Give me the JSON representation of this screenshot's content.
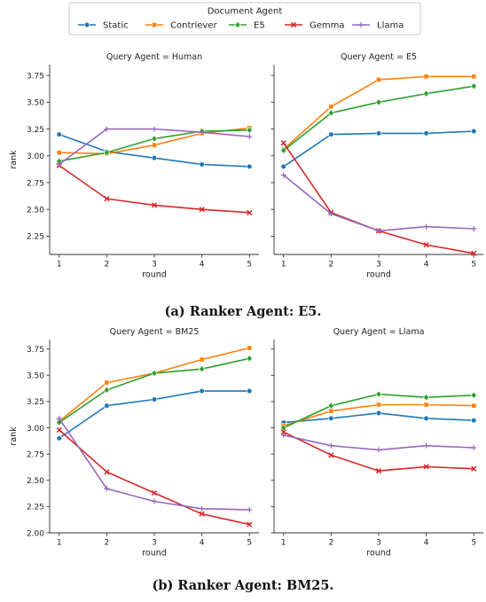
{
  "legend": {
    "title": "Document Agent",
    "entries": [
      {
        "name": "Static",
        "color": "#1f77b4",
        "marker": "circle"
      },
      {
        "name": "Contriever",
        "color": "#ff7f0e",
        "marker": "square"
      },
      {
        "name": "E5",
        "color": "#2ca02c",
        "marker": "diamond"
      },
      {
        "name": "Gemma",
        "color": "#d62728",
        "marker": "x"
      },
      {
        "name": "Llama",
        "color": "#9467bd",
        "marker": "plus"
      }
    ]
  },
  "captions": {
    "a": "(a) Ranker Agent: E5.",
    "b": "(b) Ranker Agent: BM25."
  },
  "chart_data": [
    {
      "type": "line",
      "title": "Query Agent = Human",
      "xlabel": "round",
      "ylabel": "rank",
      "x": [
        1,
        2,
        3,
        4,
        5
      ],
      "ylim": [
        2.08,
        3.85
      ],
      "yticks": [
        "2.25",
        "2.50",
        "2.75",
        "3.00",
        "3.25",
        "3.50",
        "3.75"
      ],
      "series": [
        {
          "name": "Static",
          "values": [
            3.2,
            3.04,
            2.98,
            2.92,
            2.9
          ]
        },
        {
          "name": "Contriever",
          "values": [
            3.03,
            3.02,
            3.1,
            3.21,
            3.26
          ]
        },
        {
          "name": "E5",
          "values": [
            2.95,
            3.03,
            3.16,
            3.23,
            3.24
          ]
        },
        {
          "name": "Gemma",
          "values": [
            2.91,
            2.6,
            2.54,
            2.5,
            2.47
          ]
        },
        {
          "name": "Llama",
          "values": [
            2.92,
            3.25,
            3.25,
            3.22,
            3.18
          ]
        }
      ]
    },
    {
      "type": "line",
      "title": "Query Agent = E5",
      "xlabel": "round",
      "ylabel": "",
      "x": [
        1,
        2,
        3,
        4,
        5
      ],
      "ylim": [
        2.08,
        3.85
      ],
      "series": [
        {
          "name": "Static",
          "values": [
            2.9,
            3.2,
            3.21,
            3.21,
            3.23
          ]
        },
        {
          "name": "Contriever",
          "values": [
            3.06,
            3.46,
            3.71,
            3.74,
            3.74
          ]
        },
        {
          "name": "E5",
          "values": [
            3.05,
            3.4,
            3.5,
            3.58,
            3.65
          ]
        },
        {
          "name": "Gemma",
          "values": [
            3.12,
            2.47,
            2.3,
            2.17,
            2.09
          ]
        },
        {
          "name": "Llama",
          "values": [
            2.82,
            2.46,
            2.3,
            2.34,
            2.32
          ]
        }
      ]
    },
    {
      "type": "line",
      "title": "Query Agent = BM25",
      "xlabel": "round",
      "ylabel": "rank",
      "x": [
        1,
        2,
        3,
        4,
        5
      ],
      "ylim": [
        2.0,
        3.84
      ],
      "yticks": [
        "2.00",
        "2.25",
        "2.50",
        "2.75",
        "3.00",
        "3.25",
        "3.50",
        "3.75"
      ],
      "series": [
        {
          "name": "Static",
          "values": [
            2.9,
            3.21,
            3.27,
            3.35,
            3.35
          ]
        },
        {
          "name": "Contriever",
          "values": [
            3.06,
            3.43,
            3.52,
            3.65,
            3.76
          ]
        },
        {
          "name": "E5",
          "values": [
            3.05,
            3.36,
            3.52,
            3.56,
            3.66
          ]
        },
        {
          "name": "Gemma",
          "values": [
            2.98,
            2.58,
            2.38,
            2.18,
            2.08
          ]
        },
        {
          "name": "Llama",
          "values": [
            3.09,
            2.42,
            2.3,
            2.23,
            2.22
          ]
        }
      ]
    },
    {
      "type": "line",
      "title": "Query Agent = Llama",
      "xlabel": "round",
      "ylabel": "",
      "x": [
        1,
        2,
        3,
        4,
        5
      ],
      "ylim": [
        2.0,
        3.84
      ],
      "series": [
        {
          "name": "Static",
          "values": [
            3.05,
            3.09,
            3.14,
            3.09,
            3.07
          ]
        },
        {
          "name": "Contriever",
          "values": [
            3.02,
            3.16,
            3.22,
            3.22,
            3.21
          ]
        },
        {
          "name": "E5",
          "values": [
            3.0,
            3.21,
            3.32,
            3.29,
            3.31
          ]
        },
        {
          "name": "Gemma",
          "values": [
            2.96,
            2.74,
            2.59,
            2.63,
            2.61
          ]
        },
        {
          "name": "Llama",
          "values": [
            2.93,
            2.83,
            2.79,
            2.83,
            2.81
          ]
        }
      ]
    }
  ]
}
